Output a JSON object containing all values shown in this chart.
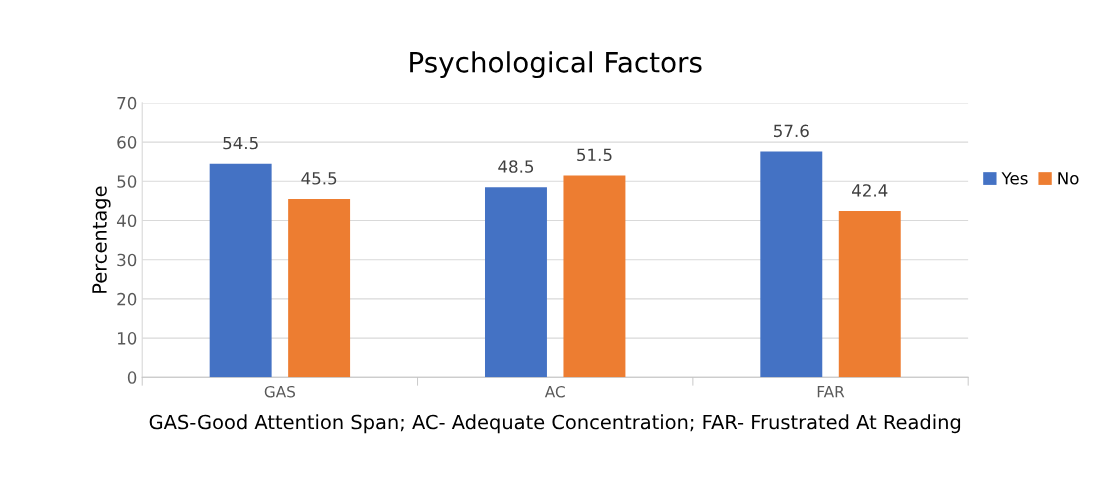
{
  "chart_data": {
    "type": "bar",
    "title": "Psychological Factors",
    "xlabel": "GAS-Good Attention Span; AC- Adequate Concentration; FAR- Frustrated At Reading",
    "ylabel": "Percentage",
    "categories": [
      "GAS",
      "AC",
      "FAR"
    ],
    "series": [
      {
        "name": "Yes",
        "color": "#4472c4",
        "values": [
          54.5,
          48.5,
          57.6
        ]
      },
      {
        "name": "No",
        "color": "#ed7d31",
        "values": [
          45.5,
          51.5,
          42.4
        ]
      }
    ],
    "ylim": [
      0,
      70
    ],
    "yticks": [
      0,
      10,
      20,
      30,
      40,
      50,
      60,
      70
    ],
    "grid": "y",
    "legend": "right",
    "data_labels": true
  }
}
